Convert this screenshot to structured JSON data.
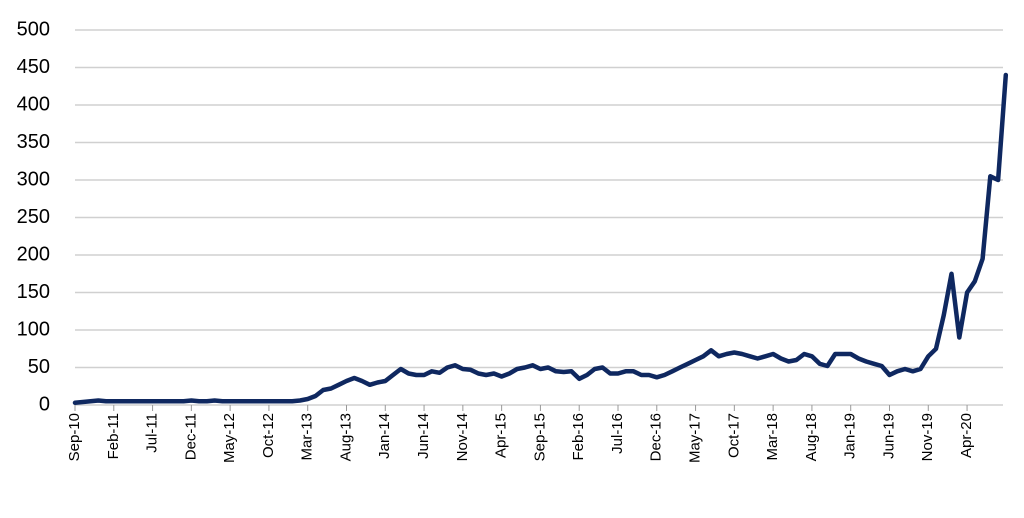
{
  "chart_data": {
    "type": "line",
    "categories": [
      "Sep-10",
      null,
      null,
      null,
      null,
      "Feb-11",
      null,
      null,
      null,
      null,
      "Jul-11",
      null,
      null,
      null,
      null,
      "Dec-11",
      null,
      null,
      null,
      null,
      "May-12",
      null,
      null,
      null,
      null,
      "Oct-12",
      null,
      null,
      null,
      null,
      "Mar-13",
      null,
      null,
      null,
      null,
      "Aug-13",
      null,
      null,
      null,
      null,
      "Jan-14",
      null,
      null,
      null,
      null,
      "Jun-14",
      null,
      null,
      null,
      null,
      "Nov-14",
      null,
      null,
      null,
      null,
      "Apr-15",
      null,
      null,
      null,
      null,
      "Sep-15",
      null,
      null,
      null,
      null,
      "Feb-16",
      null,
      null,
      null,
      null,
      "Jul-16",
      null,
      null,
      null,
      null,
      "Dec-16",
      null,
      null,
      null,
      null,
      "May-17",
      null,
      null,
      null,
      null,
      "Oct-17",
      null,
      null,
      null,
      null,
      "Mar-18",
      null,
      null,
      null,
      null,
      "Aug-18",
      null,
      null,
      null,
      null,
      "Jan-19",
      null,
      null,
      null,
      null,
      "Jun-19",
      null,
      null,
      null,
      null,
      "Nov-19",
      null,
      null,
      null,
      null,
      "Apr-20",
      null,
      null,
      null,
      null,
      null
    ],
    "values": [
      3,
      4,
      5,
      6,
      5,
      5,
      5,
      5,
      5,
      5,
      5,
      5,
      5,
      5,
      5,
      6,
      5,
      5,
      6,
      5,
      5,
      5,
      5,
      5,
      5,
      5,
      5,
      5,
      5,
      6,
      8,
      12,
      20,
      22,
      27,
      32,
      36,
      32,
      27,
      30,
      32,
      40,
      48,
      42,
      40,
      40,
      45,
      43,
      50,
      53,
      48,
      47,
      42,
      40,
      42,
      38,
      42,
      48,
      50,
      53,
      48,
      50,
      45,
      44,
      45,
      35,
      40,
      48,
      50,
      42,
      42,
      45,
      45,
      40,
      40,
      37,
      40,
      45,
      50,
      55,
      60,
      65,
      73,
      65,
      68,
      70,
      68,
      65,
      62,
      65,
      68,
      62,
      58,
      60,
      68,
      65,
      55,
      52,
      68,
      68,
      68,
      62,
      58,
      55,
      52,
      40,
      45,
      48,
      45,
      48,
      65,
      75,
      120,
      175,
      90,
      150,
      165,
      195,
      305,
      300,
      440
    ],
    "color": "#0f2860",
    "ylim": [
      0,
      500
    ],
    "yticks": [
      0,
      50,
      100,
      150,
      200,
      250,
      300,
      350,
      400,
      450,
      500
    ],
    "grid": true
  }
}
